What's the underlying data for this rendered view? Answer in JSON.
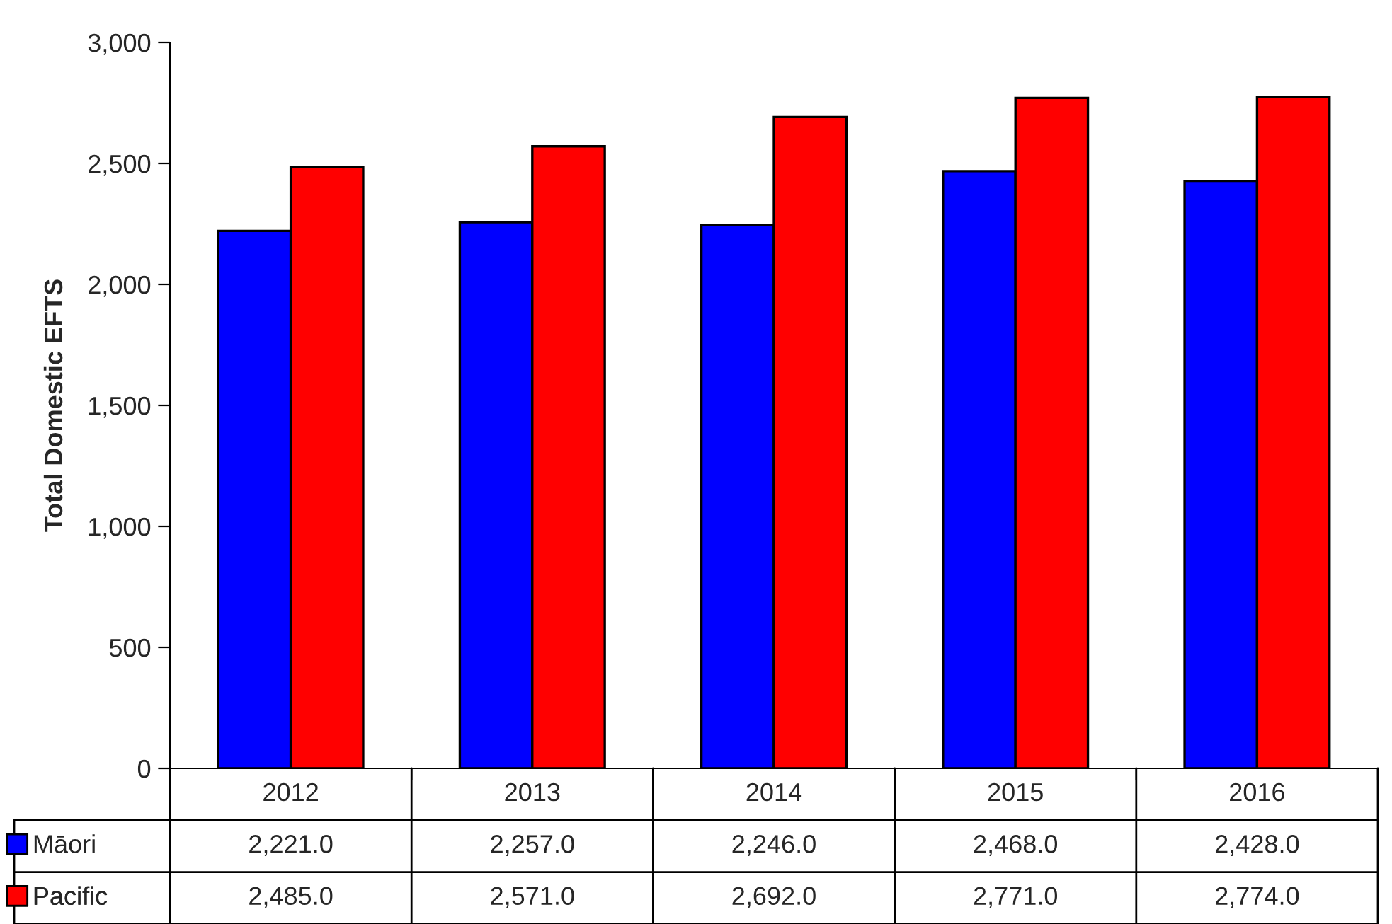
{
  "chart_data": {
    "type": "bar",
    "ylabel": "Total Domestic EFTS",
    "categories": [
      "2012",
      "2013",
      "2014",
      "2015",
      "2016"
    ],
    "series": [
      {
        "name": "Māori",
        "color": "#0000ff",
        "values": [
          2221.0,
          2257.0,
          2246.0,
          2468.0,
          2428.0
        ],
        "value_labels": [
          "2,221.0",
          "2,257.0",
          "2,246.0",
          "2,468.0",
          "2,428.0"
        ]
      },
      {
        "name": "Pacific",
        "color": "#ff0000",
        "values": [
          2485.0,
          2571.0,
          2692.0,
          2771.0,
          2774.0
        ],
        "value_labels": [
          "2,485.0",
          "2,571.0",
          "2,692.0",
          "2,771.0",
          "2,774.0"
        ]
      }
    ],
    "ylim": [
      0,
      3000
    ],
    "yticks": [
      0,
      500,
      {
        "value": 1000,
        "label": "1,000"
      },
      {
        "value": 1500,
        "label": "1,500"
      },
      {
        "value": 2000,
        "label": "2,000"
      },
      {
        "value": 2500,
        "label": "2,500"
      },
      {
        "value": 3000,
        "label": "3,000"
      }
    ],
    "grid": false,
    "legend": "bottom"
  }
}
